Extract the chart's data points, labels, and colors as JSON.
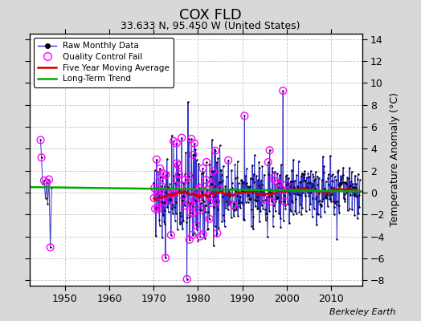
{
  "title": "COX FLD",
  "subtitle": "33.633 N, 95.450 W (United States)",
  "ylabel": "Temperature Anomaly (°C)",
  "watermark": "Berkeley Earth",
  "xlim": [
    1942,
    2017
  ],
  "ylim": [
    -8.5,
    14.5
  ],
  "yticks": [
    -8,
    -6,
    -4,
    -2,
    0,
    2,
    4,
    6,
    8,
    10,
    12,
    14
  ],
  "xticks": [
    1950,
    1960,
    1970,
    1980,
    1990,
    2000,
    2010
  ],
  "background_color": "#d8d8d8",
  "plot_bg_color": "#ffffff",
  "raw_color": "#3333cc",
  "qc_color": "#ff00ff",
  "moving_avg_color": "#cc0000",
  "trend_color": "#00aa00",
  "seed": 42
}
